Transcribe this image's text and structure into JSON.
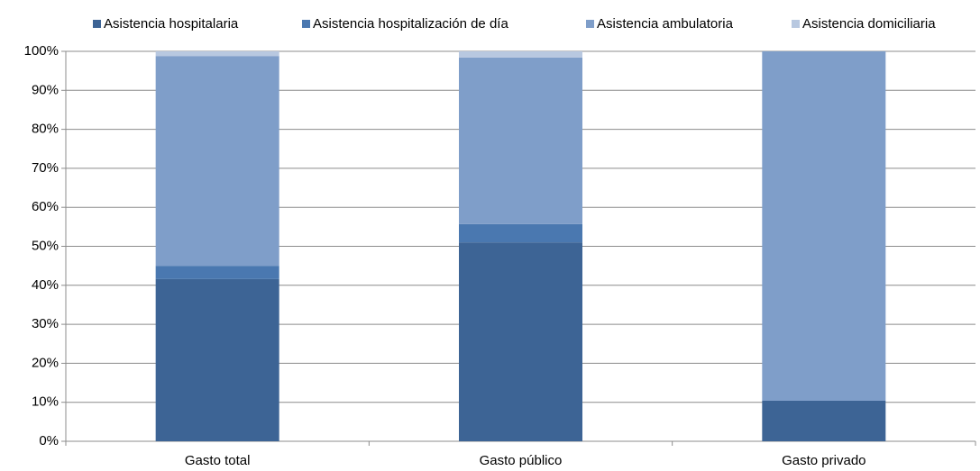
{
  "chart_data": {
    "type": "stacked_bar",
    "categories": [
      "Gasto total",
      "Gasto público",
      "Gasto privado"
    ],
    "series": [
      {
        "name": "Asistencia hospitalaria",
        "color": "#3d6495",
        "values": [
          41.6,
          51.0,
          10.4
        ]
      },
      {
        "name": "Asistencia hospitalización de día",
        "color": "#4a78b0",
        "values": [
          3.4,
          4.7,
          0
        ]
      },
      {
        "name": "Asistencia ambulatoria",
        "color": "#7f9ec9",
        "values": [
          53.8,
          42.7,
          89.6
        ]
      },
      {
        "name": "Asistencia domiciliaria",
        "color": "#b8c8e0",
        "values": [
          1.2,
          1.6,
          0
        ]
      }
    ],
    "ylim": [
      0,
      100
    ],
    "yticks": [
      {
        "value": 0,
        "label": "0%"
      },
      {
        "value": 10,
        "label": "10%"
      },
      {
        "value": 20,
        "label": "20%"
      },
      {
        "value": 30,
        "label": "30%"
      },
      {
        "value": 40,
        "label": "40%"
      },
      {
        "value": 50,
        "label": "50%"
      },
      {
        "value": 60,
        "label": "60%"
      },
      {
        "value": 70,
        "label": "70%"
      },
      {
        "value": 80,
        "label": "80%"
      },
      {
        "value": 90,
        "label": "90%"
      },
      {
        "value": 100,
        "label": "100%"
      }
    ],
    "grid": true,
    "legend": "top"
  }
}
